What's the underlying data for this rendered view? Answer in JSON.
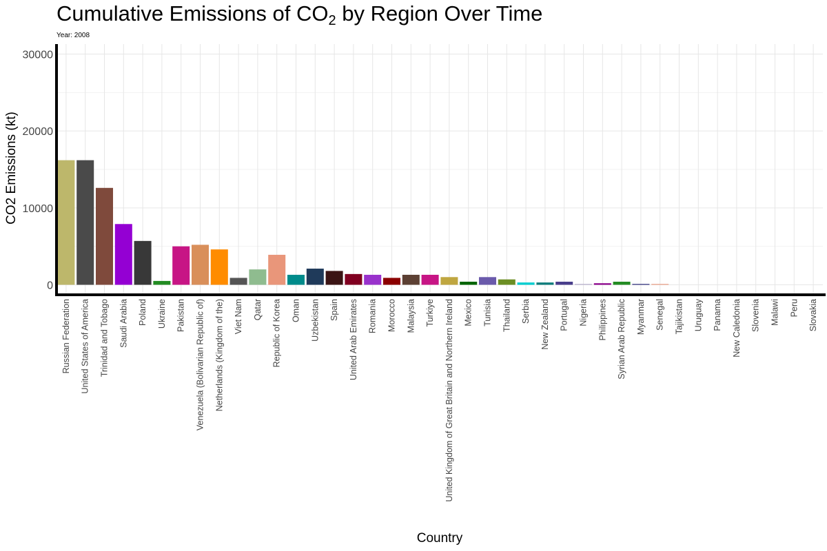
{
  "chart_data": {
    "type": "bar",
    "title_main": "Cumulative Emissions of CO",
    "title_sub": "2",
    "title_rest": " by Region Over Time",
    "subtitle": "Year: 2008",
    "xlabel": "Country",
    "ylabel": "CO2 Emissions (kt)",
    "ylim": [
      -1300,
      31300
    ],
    "yticks": [
      0,
      10000,
      20000,
      30000
    ],
    "grid": true,
    "legend": "none",
    "categories": [
      "Russian Federation",
      "United States of America",
      "Trinidad and Tobago",
      "Saudi Arabia",
      "Poland",
      "Ukraine",
      "Pakistan",
      "Venezuela (Bolivarian Republic of)",
      "Netherlands (Kingdom of the)",
      "Viet Nam",
      "Qatar",
      "Republic of Korea",
      "Oman",
      "Uzbekistan",
      "Spain",
      "United Arab Emirates",
      "Romania",
      "Morocco",
      "Malaysia",
      "Turkiye",
      "United Kingdom of Great Britain and Northern Ireland",
      "Mexico",
      "Tunisia",
      "Thailand",
      "Serbia",
      "New Zealand",
      "Portugal",
      "Nigeria",
      "Philippines",
      "Syrian Arab Republic",
      "Myanmar",
      "Senegal",
      "Tajikistan",
      "Uruguay",
      "Panama",
      "New Caledonia",
      "Slovenia",
      "Malawi",
      "Peru",
      "Slovakia"
    ],
    "values": [
      16200,
      16200,
      12600,
      7900,
      5700,
      500,
      5000,
      5200,
      4600,
      900,
      2000,
      3900,
      1300,
      2100,
      1800,
      1400,
      1300,
      900,
      1300,
      1300,
      1000,
      400,
      1000,
      700,
      300,
      300,
      400,
      100,
      200,
      400,
      100,
      100,
      0,
      0,
      0,
      0,
      0,
      0,
      0,
      0
    ],
    "colors": [
      "#bdb76b",
      "#4a4a4a",
      "#7f4a3c",
      "#9400d3",
      "#383838",
      "#228b22",
      "#c71585",
      "#d98f5a",
      "#ff8c00",
      "#555555",
      "#8fbc8f",
      "#e9967a",
      "#008b8b",
      "#1f3a5a",
      "#3b1414",
      "#800020",
      "#9932cc",
      "#8b0000",
      "#5c4033",
      "#c71585",
      "#bfa640",
      "#006400",
      "#6a5aab",
      "#6b8e23",
      "#00ced1",
      "#0e7c7b",
      "#483d8b",
      "#b0a8c8",
      "#8b008b",
      "#228b22",
      "#191970",
      "#e9967a",
      "#cccccc",
      "#cccccc",
      "#cccccc",
      "#cccccc",
      "#cccccc",
      "#cccccc",
      "#cccccc",
      "#cccccc"
    ]
  }
}
